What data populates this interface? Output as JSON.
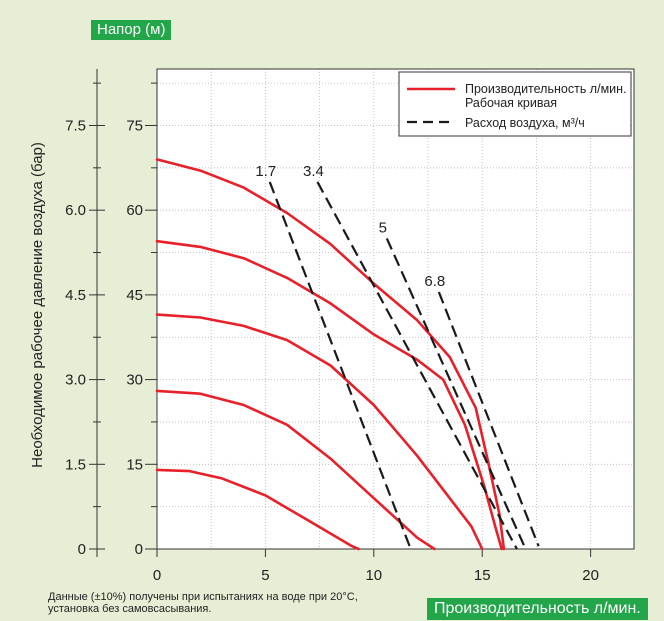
{
  "chart_data": {
    "type": "line",
    "xlabel": "Производительность л/мин.",
    "ylabel": "Необходимое рабочее давление воздуха (бар)",
    "y2label": "Напор (м)",
    "xlim": [
      0,
      22
    ],
    "ylim": [
      0,
      85
    ],
    "x_ticks": [
      "0",
      "5",
      "10",
      "15",
      "20"
    ],
    "y_ticks": [
      "0",
      "15",
      "30",
      "45",
      "60",
      "75"
    ],
    "y_pressure_ticks": [
      "0",
      "1.5",
      "3.0",
      "4.5",
      "6.0",
      "7.5"
    ],
    "grid": true,
    "legend_position": "top-right",
    "legend": [
      {
        "label": "Производительность л/мин.",
        "label2": "Рабочая кривая",
        "style": "solid",
        "color": "#e8202a"
      },
      {
        "label": "Расход воздуха, м³/ч",
        "style": "dashed",
        "color": "#1a1a1a"
      }
    ],
    "colors": {
      "performance": "#e8202a",
      "air": "#1a1a1a",
      "background": "#e6efd6",
      "tag": "#23a54a"
    },
    "series": [
      {
        "kind": "performance",
        "points": [
          [
            0,
            69
          ],
          [
            2,
            67
          ],
          [
            4,
            64
          ],
          [
            6,
            59.5
          ],
          [
            8,
            54
          ],
          [
            10,
            47
          ],
          [
            12,
            40.5
          ],
          [
            13.5,
            34
          ],
          [
            14.7,
            25
          ],
          [
            15.3,
            15
          ],
          [
            15.8,
            6
          ],
          [
            16,
            0
          ]
        ]
      },
      {
        "kind": "performance",
        "points": [
          [
            0,
            54.5
          ],
          [
            2,
            53.5
          ],
          [
            4,
            51.5
          ],
          [
            6,
            48
          ],
          [
            8,
            43.5
          ],
          [
            10,
            38
          ],
          [
            12,
            33.5
          ],
          [
            13.2,
            30
          ],
          [
            14.2,
            22
          ],
          [
            15.1,
            11
          ],
          [
            15.6,
            4
          ],
          [
            15.9,
            0
          ]
        ]
      },
      {
        "kind": "performance",
        "points": [
          [
            0,
            41.5
          ],
          [
            2,
            41
          ],
          [
            4,
            39.5
          ],
          [
            6,
            37
          ],
          [
            8,
            32.5
          ],
          [
            10,
            25.5
          ],
          [
            12,
            16.5
          ],
          [
            13.5,
            9
          ],
          [
            14.5,
            4
          ],
          [
            15,
            0
          ]
        ]
      },
      {
        "kind": "performance",
        "points": [
          [
            0,
            28
          ],
          [
            2,
            27.5
          ],
          [
            4,
            25.5
          ],
          [
            6,
            22
          ],
          [
            8,
            16
          ],
          [
            10,
            9
          ],
          [
            12,
            2
          ],
          [
            12.8,
            0
          ]
        ]
      },
      {
        "kind": "performance",
        "points": [
          [
            0,
            14
          ],
          [
            1.5,
            13.8
          ],
          [
            3,
            12.5
          ],
          [
            5,
            9.5
          ],
          [
            7,
            5
          ],
          [
            9,
            0.5
          ],
          [
            9.3,
            0
          ]
        ]
      }
    ],
    "air_lines": [
      {
        "label": "1.7",
        "points": [
          [
            5.2,
            65
          ],
          [
            11.7,
            0
          ]
        ]
      },
      {
        "label": "3.4",
        "points": [
          [
            7.4,
            65
          ],
          [
            16.6,
            0
          ]
        ]
      },
      {
        "label": "5",
        "points": [
          [
            10.6,
            55
          ],
          [
            17,
            0
          ]
        ]
      },
      {
        "label": "6.8",
        "points": [
          [
            13,
            45.5
          ],
          [
            17.6,
            0.5
          ]
        ]
      }
    ],
    "footnote": [
      "Данные (±10%) получены при испытаниях на воде при 20°C,",
      "установка без самовсасывания."
    ]
  }
}
